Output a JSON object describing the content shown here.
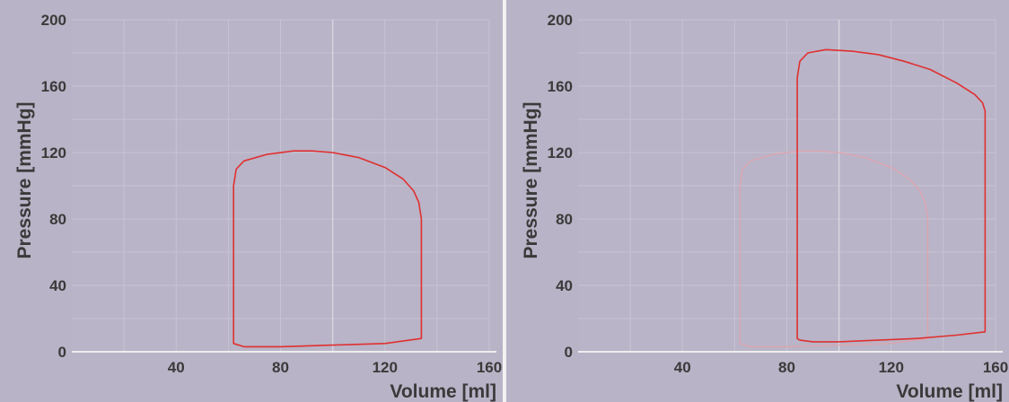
{
  "chart_data": [
    {
      "type": "line",
      "xlabel": "Volume [ml]",
      "ylabel": "Pressure [mmHg]",
      "xlim": [
        0,
        160
      ],
      "ylim": [
        0,
        200
      ],
      "xticks": [
        40,
        80,
        120,
        160
      ],
      "yticks": [
        0,
        40,
        80,
        120,
        160,
        200
      ],
      "grid": true,
      "series": [
        {
          "color": "#e03030",
          "style": "solid",
          "points": [
            [
              62,
              5
            ],
            [
              62,
              100
            ],
            [
              63,
              110
            ],
            [
              66,
              115
            ],
            [
              75,
              119
            ],
            [
              85,
              121
            ],
            [
              92,
              121
            ],
            [
              100,
              120
            ],
            [
              110,
              117
            ],
            [
              120,
              111
            ],
            [
              127,
              104
            ],
            [
              131,
              97
            ],
            [
              133,
              90
            ],
            [
              134,
              80
            ],
            [
              134,
              60
            ],
            [
              134,
              30
            ],
            [
              134,
              8
            ],
            [
              120,
              5
            ],
            [
              100,
              4
            ],
            [
              80,
              3
            ],
            [
              66,
              3
            ],
            [
              62,
              5
            ]
          ]
        }
      ]
    },
    {
      "type": "line",
      "xlabel": "Volume [ml]",
      "ylabel": "Pressure [mmHg]",
      "xlim": [
        0,
        160
      ],
      "ylim": [
        0,
        200
      ],
      "xticks": [
        40,
        80,
        120,
        160
      ],
      "yticks": [
        0,
        40,
        80,
        120,
        160,
        200
      ],
      "grid": true,
      "series": [
        {
          "color": "#e8a0a8",
          "style": "faint",
          "points": [
            [
              62,
              5
            ],
            [
              62,
              100
            ],
            [
              63,
              110
            ],
            [
              66,
              115
            ],
            [
              75,
              119
            ],
            [
              85,
              121
            ],
            [
              92,
              121
            ],
            [
              100,
              120
            ],
            [
              110,
              117
            ],
            [
              120,
              111
            ],
            [
              127,
              104
            ],
            [
              131,
              97
            ],
            [
              133,
              90
            ],
            [
              134,
              80
            ],
            [
              134,
              60
            ],
            [
              134,
              30
            ],
            [
              134,
              8
            ],
            [
              120,
              5
            ],
            [
              100,
              4
            ],
            [
              80,
              3
            ],
            [
              66,
              3
            ],
            [
              62,
              5
            ]
          ]
        },
        {
          "color": "#e03030",
          "style": "solid",
          "points": [
            [
              84,
              8
            ],
            [
              84,
              165
            ],
            [
              85,
              175
            ],
            [
              88,
              180
            ],
            [
              95,
              182
            ],
            [
              105,
              181
            ],
            [
              115,
              179
            ],
            [
              125,
              175
            ],
            [
              135,
              170
            ],
            [
              145,
              162
            ],
            [
              152,
              155
            ],
            [
              155,
              150
            ],
            [
              156,
              145
            ],
            [
              156,
              120
            ],
            [
              156,
              60
            ],
            [
              156,
              12
            ],
            [
              145,
              10
            ],
            [
              130,
              8
            ],
            [
              115,
              7
            ],
            [
              100,
              6
            ],
            [
              90,
              6
            ],
            [
              85,
              7
            ],
            [
              84,
              8
            ]
          ]
        }
      ]
    }
  ]
}
